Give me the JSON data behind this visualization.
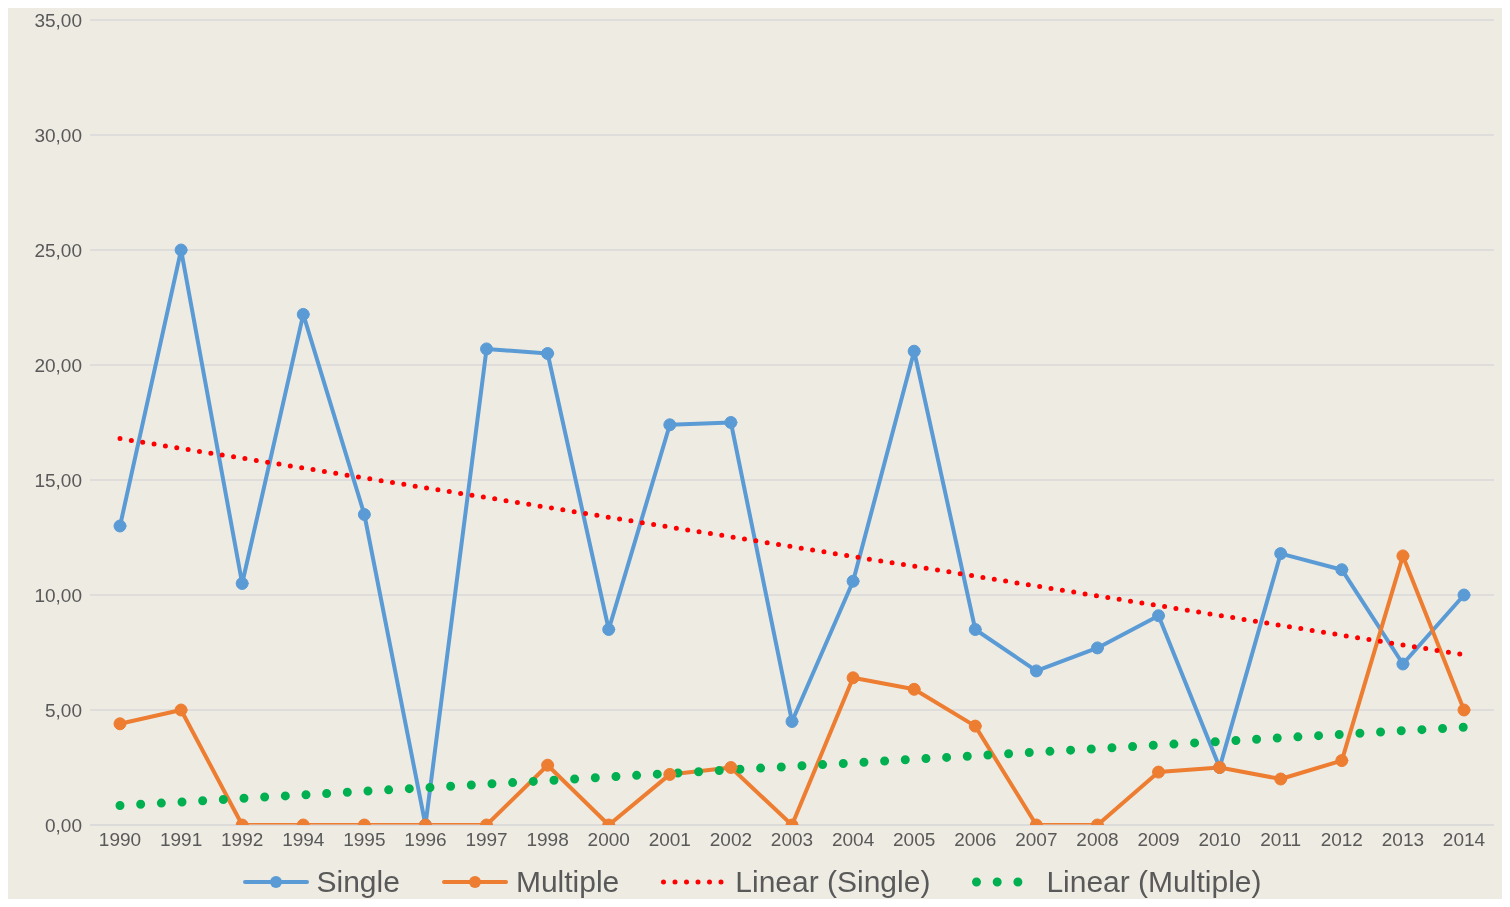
{
  "chart_data": {
    "type": "line",
    "categories": [
      "1990",
      "1991",
      "1992",
      "1994",
      "1995",
      "1996",
      "1997",
      "1998",
      "2000",
      "2001",
      "2002",
      "2003",
      "2004",
      "2005",
      "2006",
      "2007",
      "2008",
      "2009",
      "2010",
      "2011",
      "2012",
      "2013",
      "2014"
    ],
    "series": [
      {
        "name": "Single",
        "color": "#5b9bd5",
        "marker": "circle",
        "line_style": "solid",
        "values": [
          13.0,
          25.0,
          10.5,
          22.2,
          13.5,
          0,
          20.7,
          20.5,
          8.5,
          17.4,
          17.5,
          4.5,
          10.6,
          20.6,
          8.5,
          6.7,
          7.7,
          9.1,
          2.5,
          11.8,
          11.1,
          7.0,
          10.0
        ]
      },
      {
        "name": "Multiple",
        "color": "#ed7d31",
        "marker": "circle",
        "line_style": "solid",
        "values": [
          4.4,
          5.0,
          0,
          0,
          0,
          0,
          0,
          2.6,
          0,
          2.2,
          2.5,
          0,
          6.4,
          5.9,
          4.3,
          0,
          0,
          2.3,
          2.5,
          2.0,
          2.8,
          11.7,
          5.0
        ]
      },
      {
        "name": "Linear (Single)",
        "color": "#ff0000",
        "marker": "none",
        "line_style": "dotted",
        "values": [
          16.8,
          16.37,
          15.95,
          15.52,
          15.09,
          14.66,
          14.24,
          13.81,
          13.38,
          12.95,
          12.53,
          12.1,
          11.67,
          11.25,
          10.82,
          10.39,
          9.96,
          9.54,
          9.11,
          8.68,
          8.25,
          7.83,
          7.4
        ]
      },
      {
        "name": "Linear (Multiple)",
        "color": "#00b050",
        "marker": "none",
        "line_style": "dotted",
        "values": [
          0.85,
          1.0,
          1.16,
          1.31,
          1.47,
          1.62,
          1.78,
          1.93,
          2.09,
          2.24,
          2.4,
          2.55,
          2.7,
          2.86,
          3.01,
          3.17,
          3.32,
          3.48,
          3.63,
          3.79,
          3.94,
          4.1,
          4.25
        ]
      }
    ],
    "ylim": [
      0,
      35
    ],
    "yticks": [
      {
        "value": 0,
        "label": "0,00"
      },
      {
        "value": 5,
        "label": "5,00"
      },
      {
        "value": 10,
        "label": "10,00"
      },
      {
        "value": 15,
        "label": "15,00"
      },
      {
        "value": 20,
        "label": "20,00"
      },
      {
        "value": 25,
        "label": "25,00"
      },
      {
        "value": 30,
        "label": "30,00"
      },
      {
        "value": 35,
        "label": "35,00"
      }
    ],
    "grid": "y",
    "legend": "bottom"
  }
}
